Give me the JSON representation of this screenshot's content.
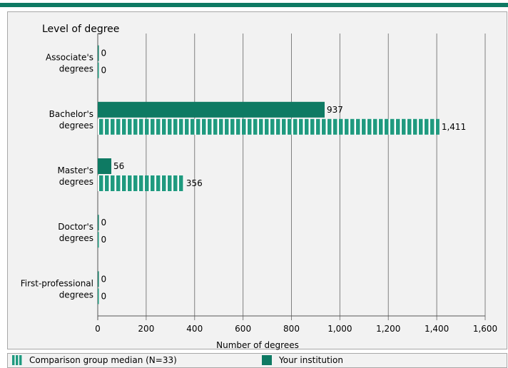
{
  "chart_data": {
    "type": "bar",
    "orientation": "horizontal",
    "title": "Level of degree",
    "xlabel": "Number of degrees",
    "xlim": [
      0,
      1600
    ],
    "xticks": [
      "0",
      "200",
      "400",
      "600",
      "800",
      "1,000",
      "1,200",
      "1,400",
      "1,600"
    ],
    "grid": "vertical",
    "categories": [
      [
        "Associate's",
        "degrees"
      ],
      [
        "Bachelor's",
        "degrees"
      ],
      [
        "Master's",
        "degrees"
      ],
      [
        "Doctor's",
        "degrees"
      ],
      [
        "First-professional",
        "degrees"
      ]
    ],
    "series": [
      {
        "name": "Your institution",
        "values": [
          0,
          937,
          56,
          0,
          0
        ],
        "labels": [
          "0",
          "937",
          "56",
          "0",
          "0"
        ],
        "color": "#0e7a63",
        "pattern": "solid"
      },
      {
        "name": "Comparison group median (N=33)",
        "values": [
          0,
          1411,
          356,
          0,
          0
        ],
        "labels": [
          "0",
          "1,411",
          "356",
          "0",
          "0"
        ],
        "color": "#1f9a7f",
        "pattern": "striped"
      }
    ],
    "legend_position": "bottom"
  },
  "legend": {
    "comparison_label": "Comparison group median (N=33)",
    "institution_label": "Your institution"
  },
  "colors": {
    "accent": "#0e7a63",
    "stripe": "#1f9a7f",
    "background": "#f2f2f2",
    "grid": "#808080"
  }
}
